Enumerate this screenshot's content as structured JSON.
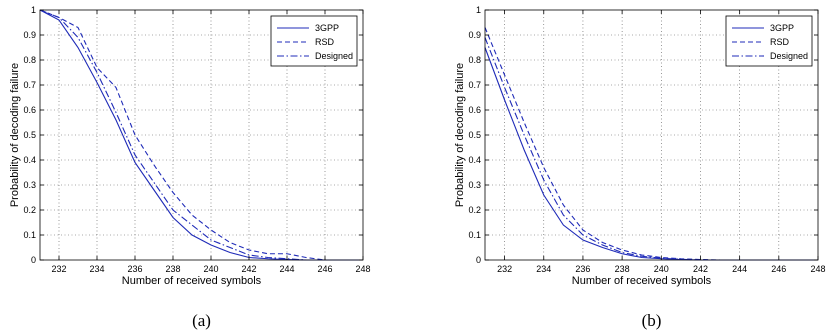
{
  "chart_data": [
    {
      "type": "line",
      "caption": "(a)",
      "xlabel": "Number of received symbols",
      "ylabel": "Probability of decoding failure",
      "xlim": [
        231,
        248
      ],
      "ylim": [
        0,
        1
      ],
      "xticks": [
        232,
        234,
        236,
        238,
        240,
        242,
        244,
        246,
        248
      ],
      "yticks": [
        0,
        0.1,
        0.2,
        0.3,
        0.4,
        0.5,
        0.6,
        0.7,
        0.8,
        0.9,
        1
      ],
      "grid": true,
      "legend": "top-right",
      "x": [
        231,
        232,
        233,
        234,
        235,
        236,
        237,
        238,
        239,
        240,
        241,
        242,
        243,
        244,
        245,
        246,
        247,
        248
      ],
      "series": [
        {
          "name": "3GPP",
          "style": "solid",
          "color": "#1f2bb8",
          "values": [
            1.0,
            0.96,
            0.85,
            0.71,
            0.56,
            0.39,
            0.28,
            0.17,
            0.1,
            0.06,
            0.03,
            0.01,
            0.005,
            0.002,
            0.0,
            0.0,
            0.0,
            0.0
          ]
        },
        {
          "name": "RSD",
          "style": "dashed",
          "color": "#1f2bb8",
          "values": [
            1.0,
            0.97,
            0.93,
            0.77,
            0.69,
            0.5,
            0.38,
            0.27,
            0.18,
            0.12,
            0.07,
            0.04,
            0.025,
            0.025,
            0.01,
            0.0,
            0.0,
            0.0
          ]
        },
        {
          "name": "Designed",
          "style": "dashdot",
          "color": "#1f2bb8",
          "values": [
            1.0,
            0.97,
            0.89,
            0.75,
            0.59,
            0.42,
            0.31,
            0.2,
            0.14,
            0.08,
            0.05,
            0.02,
            0.01,
            0.005,
            0.0,
            0.0,
            0.0,
            0.0
          ]
        }
      ]
    },
    {
      "type": "line",
      "caption": "(b)",
      "xlabel": "Number of received symbols",
      "ylabel": "Probability of decoding failure",
      "xlim": [
        231,
        248
      ],
      "ylim": [
        0,
        1
      ],
      "xticks": [
        232,
        234,
        236,
        238,
        240,
        242,
        244,
        246,
        248
      ],
      "yticks": [
        0,
        0.1,
        0.2,
        0.3,
        0.4,
        0.5,
        0.6,
        0.7,
        0.8,
        0.9,
        1
      ],
      "grid": true,
      "legend": "top-right",
      "x": [
        231,
        232,
        233,
        234,
        235,
        236,
        237,
        238,
        239,
        240,
        241,
        242,
        243,
        244,
        245,
        246,
        247,
        248
      ],
      "series": [
        {
          "name": "3GPP",
          "style": "solid",
          "color": "#1f2bb8",
          "values": [
            0.85,
            0.64,
            0.44,
            0.26,
            0.14,
            0.08,
            0.05,
            0.025,
            0.01,
            0.005,
            0.002,
            0.0,
            0.0,
            0.0,
            0.0,
            0.0,
            0.0,
            0.0
          ]
        },
        {
          "name": "RSD",
          "style": "dashed",
          "color": "#1f2bb8",
          "values": [
            0.93,
            0.74,
            0.55,
            0.37,
            0.22,
            0.12,
            0.07,
            0.04,
            0.02,
            0.01,
            0.005,
            0.002,
            0.0,
            0.0,
            0.0,
            0.0,
            0.0,
            0.0
          ]
        },
        {
          "name": "Designed",
          "style": "dashdot",
          "color": "#1f2bb8",
          "values": [
            0.89,
            0.69,
            0.5,
            0.32,
            0.18,
            0.1,
            0.06,
            0.03,
            0.015,
            0.007,
            0.003,
            0.0,
            0.0,
            0.0,
            0.0,
            0.0,
            0.0,
            0.0
          ]
        }
      ]
    }
  ]
}
